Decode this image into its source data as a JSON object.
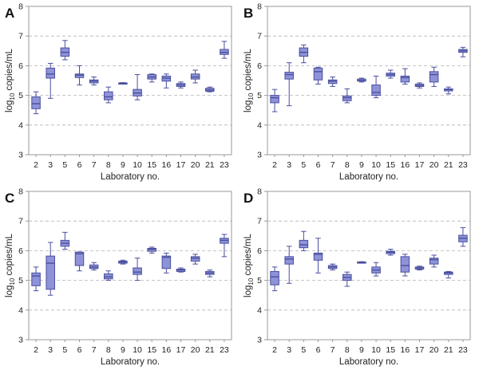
{
  "chart_data": [
    {
      "type": "box",
      "panel": "A",
      "xlabel": "Laboratory no.",
      "ylabel": "log10 copies/mL",
      "ylabel_main": "log",
      "ylabel_sub": "10",
      "ylabel_rest": " copies/mL",
      "ylim": [
        3,
        8
      ],
      "yticks": [
        3,
        4,
        5,
        6,
        7,
        8
      ],
      "grid": true,
      "categories": [
        "2",
        "3",
        "5",
        "6",
        "7",
        "8",
        "9",
        "10",
        "15",
        "16",
        "17",
        "20",
        "21",
        "23"
      ],
      "boxes": [
        {
          "min": 4.38,
          "q1": 4.55,
          "median": 4.72,
          "q3": 4.95,
          "max": 5.12
        },
        {
          "min": 4.9,
          "q1": 5.58,
          "median": 5.72,
          "q3": 5.92,
          "max": 6.08
        },
        {
          "min": 6.2,
          "q1": 6.32,
          "median": 6.45,
          "q3": 6.6,
          "max": 6.85
        },
        {
          "min": 5.35,
          "q1": 5.6,
          "median": 5.68,
          "q3": 5.72,
          "max": 6.0
        },
        {
          "min": 5.35,
          "q1": 5.42,
          "median": 5.48,
          "q3": 5.52,
          "max": 5.62
        },
        {
          "min": 4.75,
          "q1": 4.85,
          "median": 4.95,
          "q3": 5.12,
          "max": 5.28
        },
        {
          "min": 5.38,
          "q1": 5.39,
          "median": 5.4,
          "q3": 5.42,
          "max": 5.43
        },
        {
          "min": 4.85,
          "q1": 4.98,
          "median": 5.08,
          "q3": 5.2,
          "max": 5.7
        },
        {
          "min": 5.45,
          "q1": 5.55,
          "median": 5.62,
          "q3": 5.7,
          "max": 5.72
        },
        {
          "min": 5.25,
          "q1": 5.48,
          "median": 5.58,
          "q3": 5.65,
          "max": 5.72
        },
        {
          "min": 5.25,
          "q1": 5.3,
          "median": 5.35,
          "q3": 5.4,
          "max": 5.45
        },
        {
          "min": 5.42,
          "q1": 5.55,
          "median": 5.62,
          "q3": 5.72,
          "max": 5.85
        },
        {
          "min": 5.12,
          "q1": 5.14,
          "median": 5.18,
          "q3": 5.24,
          "max": 5.28
        },
        {
          "min": 6.25,
          "q1": 6.38,
          "median": 6.45,
          "q3": 6.55,
          "max": 6.82
        }
      ]
    },
    {
      "type": "box",
      "panel": "B",
      "xlabel": "Laboratory no.",
      "ylabel": "log10 copies/mL",
      "ylabel_main": "log",
      "ylabel_sub": "10",
      "ylabel_rest": " copies/mL",
      "ylim": [
        3,
        8
      ],
      "yticks": [
        3,
        4,
        5,
        6,
        7,
        8
      ],
      "grid": true,
      "categories": [
        "2",
        "3",
        "5",
        "6",
        "7",
        "8",
        "9",
        "10",
        "15",
        "16",
        "17",
        "20",
        "21",
        "23"
      ],
      "boxes": [
        {
          "min": 4.45,
          "q1": 4.75,
          "median": 4.92,
          "q3": 5.0,
          "max": 5.2
        },
        {
          "min": 4.65,
          "q1": 5.55,
          "median": 5.7,
          "q3": 5.78,
          "max": 6.1
        },
        {
          "min": 6.1,
          "q1": 6.32,
          "median": 6.45,
          "q3": 6.6,
          "max": 6.7
        },
        {
          "min": 5.38,
          "q1": 5.52,
          "median": 5.8,
          "q3": 5.92,
          "max": 5.95
        },
        {
          "min": 5.3,
          "q1": 5.4,
          "median": 5.48,
          "q3": 5.52,
          "max": 5.62
        },
        {
          "min": 4.75,
          "q1": 4.82,
          "median": 4.92,
          "q3": 4.98,
          "max": 5.22
        },
        {
          "min": 5.45,
          "q1": 5.48,
          "median": 5.5,
          "q3": 5.55,
          "max": 5.58
        },
        {
          "min": 4.92,
          "q1": 5.0,
          "median": 5.1,
          "q3": 5.35,
          "max": 5.65
        },
        {
          "min": 5.58,
          "q1": 5.65,
          "median": 5.7,
          "q3": 5.75,
          "max": 5.85
        },
        {
          "min": 5.38,
          "q1": 5.45,
          "median": 5.6,
          "q3": 5.65,
          "max": 5.9
        },
        {
          "min": 5.25,
          "q1": 5.3,
          "median": 5.33,
          "q3": 5.38,
          "max": 5.42
        },
        {
          "min": 5.3,
          "q1": 5.45,
          "median": 5.7,
          "q3": 5.8,
          "max": 5.95
        },
        {
          "min": 5.05,
          "q1": 5.15,
          "median": 5.2,
          "q3": 5.22,
          "max": 5.28
        },
        {
          "min": 6.3,
          "q1": 6.45,
          "median": 6.5,
          "q3": 6.55,
          "max": 6.62
        }
      ]
    },
    {
      "type": "box",
      "panel": "C",
      "xlabel": "Laboratory no.",
      "ylabel": "log10 copies/mL",
      "ylabel_main": "log",
      "ylabel_sub": "10",
      "ylabel_rest": " copies/mL",
      "ylim": [
        3,
        8
      ],
      "yticks": [
        3,
        4,
        5,
        6,
        7,
        8
      ],
      "grid": true,
      "categories": [
        "2",
        "3",
        "5",
        "6",
        "7",
        "8",
        "9",
        "10",
        "15",
        "16",
        "17",
        "20",
        "21",
        "23"
      ],
      "boxes": [
        {
          "min": 4.65,
          "q1": 4.82,
          "median": 5.15,
          "q3": 5.25,
          "max": 5.45
        },
        {
          "min": 4.5,
          "q1": 4.7,
          "median": 5.58,
          "q3": 5.82,
          "max": 6.28
        },
        {
          "min": 6.05,
          "q1": 6.15,
          "median": 6.25,
          "q3": 6.35,
          "max": 6.62
        },
        {
          "min": 5.32,
          "q1": 5.5,
          "median": 5.9,
          "q3": 5.95,
          "max": 5.96
        },
        {
          "min": 5.35,
          "q1": 5.4,
          "median": 5.45,
          "q3": 5.52,
          "max": 5.6
        },
        {
          "min": 5.0,
          "q1": 5.05,
          "median": 5.12,
          "q3": 5.22,
          "max": 5.32
        },
        {
          "min": 5.55,
          "q1": 5.58,
          "median": 5.62,
          "q3": 5.65,
          "max": 5.68
        },
        {
          "min": 5.0,
          "q1": 5.2,
          "median": 5.28,
          "q3": 5.42,
          "max": 5.75
        },
        {
          "min": 5.92,
          "q1": 5.98,
          "median": 6.05,
          "q3": 6.08,
          "max": 6.12
        },
        {
          "min": 5.25,
          "q1": 5.4,
          "median": 5.78,
          "q3": 5.82,
          "max": 5.92
        },
        {
          "min": 5.28,
          "q1": 5.3,
          "median": 5.35,
          "q3": 5.38,
          "max": 5.42
        },
        {
          "min": 5.55,
          "q1": 5.65,
          "median": 5.75,
          "q3": 5.8,
          "max": 5.88
        },
        {
          "min": 5.12,
          "q1": 5.2,
          "median": 5.25,
          "q3": 5.3,
          "max": 5.35
        },
        {
          "min": 5.8,
          "q1": 6.25,
          "median": 6.35,
          "q3": 6.42,
          "max": 6.55
        }
      ]
    },
    {
      "type": "box",
      "panel": "D",
      "xlabel": "Laboratory no.",
      "ylabel": "log10 copies/mL",
      "ylabel_main": "log",
      "ylabel_sub": "10",
      "ylabel_rest": " copies/mL",
      "ylim": [
        3,
        8
      ],
      "yticks": [
        3,
        4,
        5,
        6,
        7,
        8
      ],
      "grid": true,
      "categories": [
        "2",
        "3",
        "5",
        "6",
        "7",
        "8",
        "9",
        "10",
        "15",
        "16",
        "17",
        "20",
        "21",
        "23"
      ],
      "boxes": [
        {
          "min": 4.65,
          "q1": 4.85,
          "median": 5.12,
          "q3": 5.3,
          "max": 5.45
        },
        {
          "min": 4.9,
          "q1": 5.55,
          "median": 5.72,
          "q3": 5.8,
          "max": 6.15
        },
        {
          "min": 6.0,
          "q1": 6.1,
          "median": 6.2,
          "q3": 6.35,
          "max": 6.65
        },
        {
          "min": 5.25,
          "q1": 5.68,
          "median": 5.88,
          "q3": 5.92,
          "max": 6.42
        },
        {
          "min": 5.35,
          "q1": 5.4,
          "median": 5.45,
          "q3": 5.5,
          "max": 5.55
        },
        {
          "min": 4.8,
          "q1": 5.0,
          "median": 5.1,
          "q3": 5.2,
          "max": 5.28
        },
        {
          "min": 5.58,
          "q1": 5.59,
          "median": 5.6,
          "q3": 5.62,
          "max": 5.63
        },
        {
          "min": 5.15,
          "q1": 5.25,
          "median": 5.35,
          "q3": 5.45,
          "max": 5.6
        },
        {
          "min": 5.85,
          "q1": 5.9,
          "median": 5.95,
          "q3": 5.98,
          "max": 6.05
        },
        {
          "min": 5.15,
          "q1": 5.28,
          "median": 5.5,
          "q3": 5.8,
          "max": 5.88
        },
        {
          "min": 5.35,
          "q1": 5.38,
          "median": 5.42,
          "q3": 5.45,
          "max": 5.48
        },
        {
          "min": 5.45,
          "q1": 5.55,
          "median": 5.7,
          "q3": 5.75,
          "max": 5.85
        },
        {
          "min": 5.08,
          "q1": 5.2,
          "median": 5.25,
          "q3": 5.28,
          "max": 5.3
        },
        {
          "min": 6.15,
          "q1": 6.3,
          "median": 6.42,
          "q3": 6.52,
          "max": 6.78
        }
      ]
    }
  ],
  "style": {
    "box_fill": "#8e93d8",
    "box_stroke": "#4a4f9e",
    "whisker": "#4a4f9e",
    "grid": "#b4b4b4",
    "axis": "#9a9a9a"
  }
}
